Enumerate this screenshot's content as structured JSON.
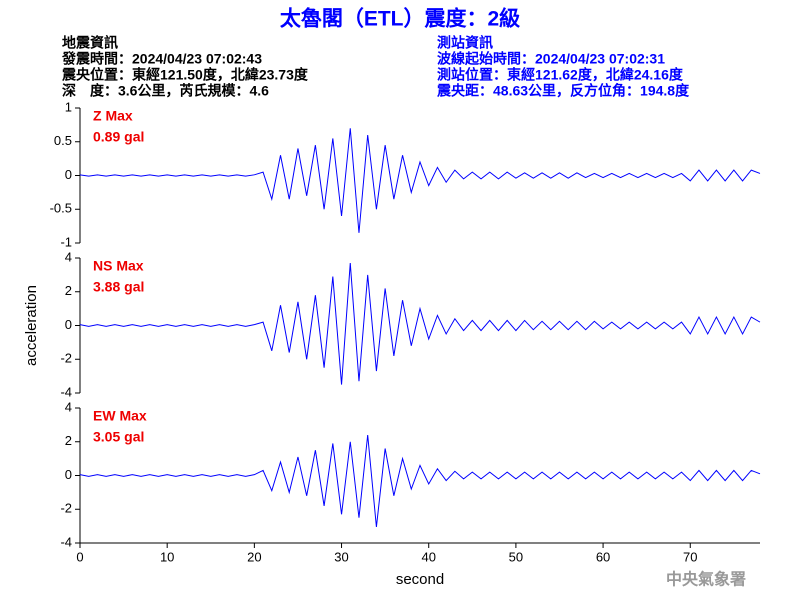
{
  "header": {
    "title": "太魯閣（ETL）震度：2級",
    "left": [
      "地震資訊",
      "發震時間：2024/04/23 07:02:43",
      "震央位置：東經121.50度，北緯23.73度",
      "深　度：3.6公里，芮氏規模：4.6"
    ],
    "right": [
      "測站資訊",
      "波線起始時間：2024/04/23 07:02:31",
      "測站位置：東經121.62度，北緯24.16度",
      "震央距：48.63公里，反方位角：194.8度"
    ]
  },
  "footer": {
    "agency": "中央氣象署"
  },
  "chart_data": [
    {
      "type": "line",
      "annotations": [
        "Z Max",
        "0.89 gal"
      ],
      "color": "#0000ff",
      "x": [
        0,
        1,
        2,
        3,
        4,
        5,
        6,
        7,
        8,
        9,
        10,
        11,
        12,
        13,
        14,
        15,
        16,
        17,
        18,
        19,
        20,
        21,
        22,
        23,
        24,
        25,
        26,
        27,
        28,
        29,
        30,
        31,
        32,
        33,
        34,
        35,
        36,
        37,
        38,
        39,
        40,
        41,
        42,
        43,
        44,
        45,
        46,
        47,
        48,
        49,
        50,
        51,
        52,
        53,
        54,
        55,
        56,
        57,
        58,
        59,
        60,
        61,
        62,
        63,
        64,
        65,
        66,
        67,
        68,
        69,
        70,
        71,
        72,
        73,
        74,
        75,
        76,
        77,
        78
      ],
      "values": [
        0.01,
        -0.01,
        0.01,
        -0.01,
        0.01,
        -0.01,
        0.01,
        -0.01,
        0.01,
        -0.01,
        0.01,
        -0.01,
        0.01,
        -0.01,
        0.01,
        -0.01,
        0.01,
        -0.01,
        0.01,
        -0.01,
        0.01,
        0.05,
        -0.35,
        0.3,
        -0.35,
        0.4,
        -0.3,
        0.45,
        -0.5,
        0.55,
        -0.6,
        0.7,
        -0.85,
        0.6,
        -0.5,
        0.45,
        -0.35,
        0.3,
        -0.25,
        0.2,
        -0.15,
        0.12,
        -0.1,
        0.08,
        -0.05,
        0.05,
        -0.05,
        0.05,
        -0.05,
        0.05,
        -0.04,
        0.04,
        -0.04,
        0.04,
        -0.04,
        0.04,
        -0.04,
        0.04,
        -0.03,
        0.03,
        -0.03,
        0.03,
        -0.03,
        0.03,
        -0.03,
        0.03,
        -0.03,
        0.03,
        -0.03,
        0.03,
        -0.08,
        0.08,
        -0.08,
        0.08,
        -0.08,
        0.08,
        -0.08,
        0.08,
        0.03
      ],
      "xlim": [
        0,
        78
      ],
      "ylim": [
        -1,
        1
      ],
      "yticks": [
        -1,
        -0.5,
        0,
        0.5,
        1
      ]
    },
    {
      "type": "line",
      "annotations": [
        "NS Max",
        "3.88 gal"
      ],
      "color": "#0000ff",
      "ylabel": "acceleration",
      "x": [
        0,
        1,
        2,
        3,
        4,
        5,
        6,
        7,
        8,
        9,
        10,
        11,
        12,
        13,
        14,
        15,
        16,
        17,
        18,
        19,
        20,
        21,
        22,
        23,
        24,
        25,
        26,
        27,
        28,
        29,
        30,
        31,
        32,
        33,
        34,
        35,
        36,
        37,
        38,
        39,
        40,
        41,
        42,
        43,
        44,
        45,
        46,
        47,
        48,
        49,
        50,
        51,
        52,
        53,
        54,
        55,
        56,
        57,
        58,
        59,
        60,
        61,
        62,
        63,
        64,
        65,
        66,
        67,
        68,
        69,
        70,
        71,
        72,
        73,
        74,
        75,
        76,
        77,
        78
      ],
      "values": [
        0.05,
        -0.05,
        0.05,
        -0.05,
        0.05,
        -0.05,
        0.05,
        -0.05,
        0.05,
        -0.05,
        0.05,
        -0.05,
        0.05,
        -0.05,
        0.05,
        -0.05,
        0.05,
        -0.05,
        0.05,
        -0.05,
        0.05,
        0.2,
        -1.5,
        1.2,
        -1.6,
        1.4,
        -2.0,
        1.8,
        -2.5,
        2.9,
        -3.5,
        3.7,
        -3.3,
        3.0,
        -2.7,
        2.2,
        -1.8,
        1.5,
        -1.2,
        1.0,
        -0.8,
        0.6,
        -0.5,
        0.4,
        -0.3,
        0.3,
        -0.3,
        0.3,
        -0.3,
        0.3,
        -0.3,
        0.3,
        -0.25,
        0.25,
        -0.25,
        0.25,
        -0.25,
        0.25,
        -0.25,
        0.25,
        -0.2,
        0.2,
        -0.2,
        0.2,
        -0.2,
        0.2,
        -0.2,
        0.2,
        -0.2,
        0.2,
        -0.5,
        0.5,
        -0.5,
        0.5,
        -0.5,
        0.5,
        -0.5,
        0.5,
        0.2
      ],
      "xlim": [
        0,
        78
      ],
      "ylim": [
        -4,
        4
      ],
      "yticks": [
        -4,
        -2,
        0,
        2,
        4
      ]
    },
    {
      "type": "line",
      "annotations": [
        "EW Max",
        "3.05 gal"
      ],
      "color": "#0000ff",
      "xlabel": "second",
      "x": [
        0,
        1,
        2,
        3,
        4,
        5,
        6,
        7,
        8,
        9,
        10,
        11,
        12,
        13,
        14,
        15,
        16,
        17,
        18,
        19,
        20,
        21,
        22,
        23,
        24,
        25,
        26,
        27,
        28,
        29,
        30,
        31,
        32,
        33,
        34,
        35,
        36,
        37,
        38,
        39,
        40,
        41,
        42,
        43,
        44,
        45,
        46,
        47,
        48,
        49,
        50,
        51,
        52,
        53,
        54,
        55,
        56,
        57,
        58,
        59,
        60,
        61,
        62,
        63,
        64,
        65,
        66,
        67,
        68,
        69,
        70,
        71,
        72,
        73,
        74,
        75,
        76,
        77,
        78
      ],
      "values": [
        0.05,
        -0.05,
        0.05,
        -0.05,
        0.05,
        -0.05,
        0.05,
        -0.05,
        0.05,
        -0.05,
        0.05,
        -0.05,
        0.05,
        -0.05,
        0.05,
        -0.05,
        0.05,
        -0.05,
        0.05,
        -0.05,
        0.05,
        0.3,
        -0.9,
        0.8,
        -1.0,
        1.1,
        -1.2,
        1.5,
        -1.8,
        1.9,
        -2.3,
        2.0,
        -2.5,
        2.4,
        -3.05,
        1.6,
        -1.2,
        1.0,
        -0.8,
        0.6,
        -0.5,
        0.4,
        -0.3,
        0.25,
        -0.2,
        0.2,
        -0.2,
        0.2,
        -0.2,
        0.2,
        -0.2,
        0.2,
        -0.2,
        0.2,
        -0.2,
        0.2,
        -0.2,
        0.2,
        -0.2,
        0.2,
        -0.2,
        0.2,
        -0.2,
        0.2,
        -0.2,
        0.2,
        -0.2,
        0.2,
        -0.2,
        0.2,
        -0.3,
        0.3,
        -0.3,
        0.3,
        -0.3,
        0.3,
        -0.3,
        0.3,
        0.1
      ],
      "xlim": [
        0,
        78
      ],
      "ylim": [
        -4,
        4
      ],
      "yticks": [
        -4,
        -2,
        0,
        2,
        4
      ],
      "xticks": [
        0,
        10,
        20,
        30,
        40,
        50,
        60,
        70
      ]
    }
  ]
}
